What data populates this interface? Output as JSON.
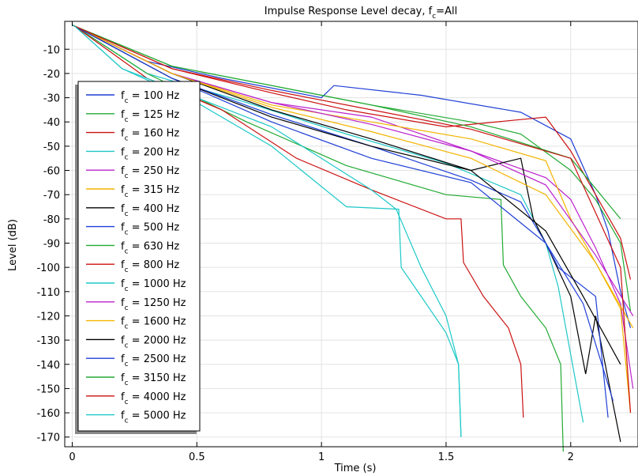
{
  "chart_data": {
    "type": "line",
    "title": "Impulse Response   Level decay, f",
    "title_sub": "c",
    "title_suffix": "=All",
    "xlabel": "Time (s)",
    "ylabel": "Level (dB)",
    "xlim": [
      -0.03,
      2.27
    ],
    "ylim": [
      -174,
      1.5
    ],
    "xticks": [
      0,
      0.5,
      1,
      1.5,
      2
    ],
    "xtick_labels": [
      "0",
      "0.5",
      "1",
      "1.5",
      "2"
    ],
    "yticks": [
      -10,
      -20,
      -30,
      -40,
      -50,
      -60,
      -70,
      -80,
      -90,
      -100,
      -110,
      -120,
      -130,
      -140,
      -150,
      -160,
      -170
    ],
    "ytick_labels": [
      "-10",
      "-20",
      "-30",
      "-40",
      "-50",
      "-60",
      "-70",
      "-80",
      "-90",
      "-100",
      "-110",
      "-120",
      "-130",
      "-140",
      "-150",
      "-160",
      "-170"
    ],
    "grid": true,
    "legend_position": "left",
    "series": [
      {
        "name": "f_c = 100 Hz",
        "label_prefix": "f",
        "label_sub": "c",
        "label_suffix": " = 100 Hz",
        "color": "#1f3fd6",
        "x": [
          0,
          0.01,
          0.3,
          0.6,
          1.0,
          1.05,
          1.4,
          1.8,
          2.0,
          2.1,
          2.15,
          2.2,
          2.24
        ],
        "y": [
          0,
          -0.5,
          -15,
          -22,
          -30,
          -25,
          -29,
          -36,
          -47,
          -70,
          -85,
          -110,
          -125
        ]
      },
      {
        "name": "f_c = 125 Hz",
        "label_prefix": "f",
        "label_sub": "c",
        "label_suffix": " = 125 Hz",
        "color": "#22aa33",
        "x": [
          0,
          0.01,
          0.4,
          0.8,
          1.2,
          1.6,
          1.8,
          2.0,
          2.1,
          2.2,
          2.24
        ],
        "y": [
          0,
          -0.5,
          -17,
          -25,
          -33,
          -40,
          -45,
          -60,
          -72,
          -90,
          -118
        ]
      },
      {
        "name": "f_c = 160 Hz",
        "label_prefix": "f",
        "label_sub": "c",
        "label_suffix": " = 160 Hz",
        "color": "#cc1111",
        "x": [
          0,
          0.01,
          0.4,
          0.8,
          1.1,
          1.5,
          1.9,
          2.0,
          2.1,
          2.2,
          2.24
        ],
        "y": [
          0,
          -0.5,
          -18,
          -28,
          -35,
          -42,
          -38,
          -52,
          -70,
          -88,
          -105
        ]
      },
      {
        "name": "f_c = 200 Hz",
        "label_prefix": "f",
        "label_sub": "c",
        "label_suffix": " = 200 Hz",
        "color": "#1ec8c8",
        "x": [
          0,
          0.01,
          0.3,
          0.7,
          1.1,
          1.5,
          1.8,
          1.9,
          1.95,
          2.05
        ],
        "y": [
          0,
          -0.5,
          -20,
          -32,
          -45,
          -57,
          -70,
          -90,
          -108,
          -164
        ]
      },
      {
        "name": "f_c = 250 Hz",
        "label_prefix": "f",
        "label_sub": "c",
        "label_suffix": " = 250 Hz",
        "color": "#bb22cc",
        "x": [
          0,
          0.01,
          0.4,
          0.8,
          1.2,
          1.6,
          1.9,
          2.0,
          2.1,
          2.2,
          2.25
        ],
        "y": [
          0,
          -0.5,
          -20,
          -32,
          -38,
          -52,
          -63,
          -72,
          -92,
          -115,
          -150
        ]
      },
      {
        "name": "f_c = 315 Hz",
        "label_prefix": "f",
        "label_sub": "c",
        "label_suffix": " = 315 Hz",
        "color": "#f2b400",
        "x": [
          0,
          0.01,
          0.4,
          0.8,
          1.2,
          1.6,
          1.9,
          2.0,
          2.1,
          2.2,
          2.24
        ],
        "y": [
          0,
          -0.5,
          -20,
          -33,
          -40,
          -47,
          -56,
          -80,
          -98,
          -117,
          -160
        ]
      },
      {
        "name": "f_c = 400 Hz",
        "label_prefix": "f",
        "label_sub": "c",
        "label_suffix": " = 400 Hz",
        "color": "#000000",
        "x": [
          0,
          0.01,
          0.4,
          0.8,
          1.2,
          1.6,
          1.8,
          1.85,
          1.9,
          2.0,
          2.06,
          2.1,
          2.2
        ],
        "y": [
          0,
          -0.5,
          -20,
          -35,
          -47,
          -60,
          -55,
          -80,
          -90,
          -112,
          -144,
          -120,
          -172
        ]
      },
      {
        "name": "f_c = 500 Hz",
        "label_prefix": "f",
        "label_sub": "c",
        "label_suffix": " = 500 Hz",
        "color": "#1f3fd6",
        "x": [
          0,
          0.01,
          0.4,
          0.8,
          1.2,
          1.6,
          1.8,
          1.9,
          1.95,
          2.1,
          2.15
        ],
        "y": [
          0,
          -0.5,
          -22,
          -37,
          -50,
          -64,
          -73,
          -90,
          -100,
          -112,
          -162
        ]
      },
      {
        "name": "f_c = 630 Hz",
        "label_prefix": "f",
        "label_sub": "c",
        "label_suffix": " = 630 Hz",
        "color": "#22aa33",
        "x": [
          0,
          0.01,
          0.3,
          0.7,
          1.1,
          1.5,
          1.72,
          1.73,
          1.8,
          1.9,
          1.96,
          1.97
        ],
        "y": [
          0,
          -0.5,
          -20,
          -40,
          -58,
          -70,
          -72,
          -99,
          -112,
          -125,
          -140,
          -176
        ]
      },
      {
        "name": "f_c = 800 Hz",
        "label_prefix": "f",
        "label_sub": "c",
        "label_suffix": " = 800 Hz",
        "color": "#cc1111",
        "x": [
          0,
          0.01,
          0.3,
          0.6,
          0.9,
          1.2,
          1.5,
          1.56,
          1.57,
          1.65,
          1.75,
          1.8,
          1.81
        ],
        "y": [
          0,
          -0.5,
          -22,
          -35,
          -55,
          -68,
          -80,
          -80,
          -98,
          -112,
          -125,
          -140,
          -162
        ]
      },
      {
        "name": "f_c = 1000 Hz",
        "label_prefix": "f",
        "label_sub": "c",
        "label_suffix": " = 1000 Hz",
        "color": "#1ec8c8",
        "x": [
          0,
          0.01,
          0.2,
          0.5,
          0.8,
          1.1,
          1.31,
          1.32,
          1.4,
          1.5,
          1.55,
          1.56
        ],
        "y": [
          0,
          -0.5,
          -18,
          -32,
          -50,
          -75,
          -76,
          -100,
          -112,
          -127,
          -140,
          -170
        ]
      },
      {
        "name": "f_c = 1250 Hz",
        "label_prefix": "f",
        "label_sub": "c",
        "label_suffix": " = 1250 Hz",
        "color": "#bb22cc",
        "x": [
          0,
          0.01,
          0.4,
          0.8,
          1.2,
          1.6,
          1.9,
          2.1,
          2.25
        ],
        "y": [
          0,
          -0.5,
          -20,
          -32,
          -41,
          -52,
          -66,
          -95,
          -120
        ]
      },
      {
        "name": "f_c = 1600 Hz",
        "label_prefix": "f",
        "label_sub": "c",
        "label_suffix": " = 1600 Hz",
        "color": "#f2b400",
        "x": [
          0,
          0.01,
          0.4,
          0.8,
          1.2,
          1.6,
          1.9,
          2.1,
          2.25
        ],
        "y": [
          0,
          -0.5,
          -20,
          -34,
          -44,
          -55,
          -70,
          -98,
          -125
        ]
      },
      {
        "name": "f_c = 2000 Hz",
        "label_prefix": "f",
        "label_sub": "c",
        "label_suffix": " = 2000 Hz",
        "color": "#000000",
        "x": [
          0,
          0.01,
          0.4,
          0.8,
          1.2,
          1.6,
          1.9,
          2.05,
          2.2
        ],
        "y": [
          0,
          -0.5,
          -22,
          -38,
          -50,
          -60,
          -85,
          -112,
          -140
        ]
      },
      {
        "name": "f_c = 2500 Hz",
        "label_prefix": "f",
        "label_sub": "c",
        "label_suffix": " = 2500 Hz",
        "color": "#1f3fd6",
        "x": [
          0,
          0.01,
          0.4,
          0.8,
          1.2,
          1.6,
          1.9,
          2.05,
          2.17
        ],
        "y": [
          0,
          -0.5,
          -22,
          -40,
          -55,
          -65,
          -90,
          -115,
          -155
        ]
      },
      {
        "name": "f_c = 3150 Hz",
        "label_prefix": "f",
        "label_sub": "c",
        "label_suffix": " = 3150 Hz",
        "color": "#22aa33",
        "x": [
          0,
          0.01,
          0.4,
          0.8,
          1.2,
          1.6,
          2.0,
          2.2
        ],
        "y": [
          0,
          -0.5,
          -17,
          -25,
          -33,
          -42,
          -55,
          -80
        ]
      },
      {
        "name": "f_c = 4000 Hz",
        "label_prefix": "f",
        "label_sub": "c",
        "label_suffix": " = 4000 Hz",
        "color": "#cc1111",
        "x": [
          0,
          0.01,
          0.4,
          0.8,
          1.2,
          1.6,
          2.0,
          2.2,
          2.24
        ],
        "y": [
          0,
          -0.5,
          -18,
          -27,
          -35,
          -43,
          -55,
          -100,
          -160
        ]
      },
      {
        "name": "f_c = 5000 Hz",
        "label_prefix": "f",
        "label_sub": "c",
        "label_suffix": " = 5000 Hz",
        "color": "#1ec8c8",
        "x": [
          0,
          0.01,
          0.2,
          0.5,
          0.8,
          1.0,
          1.2,
          1.3,
          1.4,
          1.5,
          1.55,
          1.56
        ],
        "y": [
          0,
          -0.5,
          -18,
          -30,
          -42,
          -55,
          -68,
          -76,
          -100,
          -120,
          -140,
          -170
        ]
      }
    ]
  }
}
